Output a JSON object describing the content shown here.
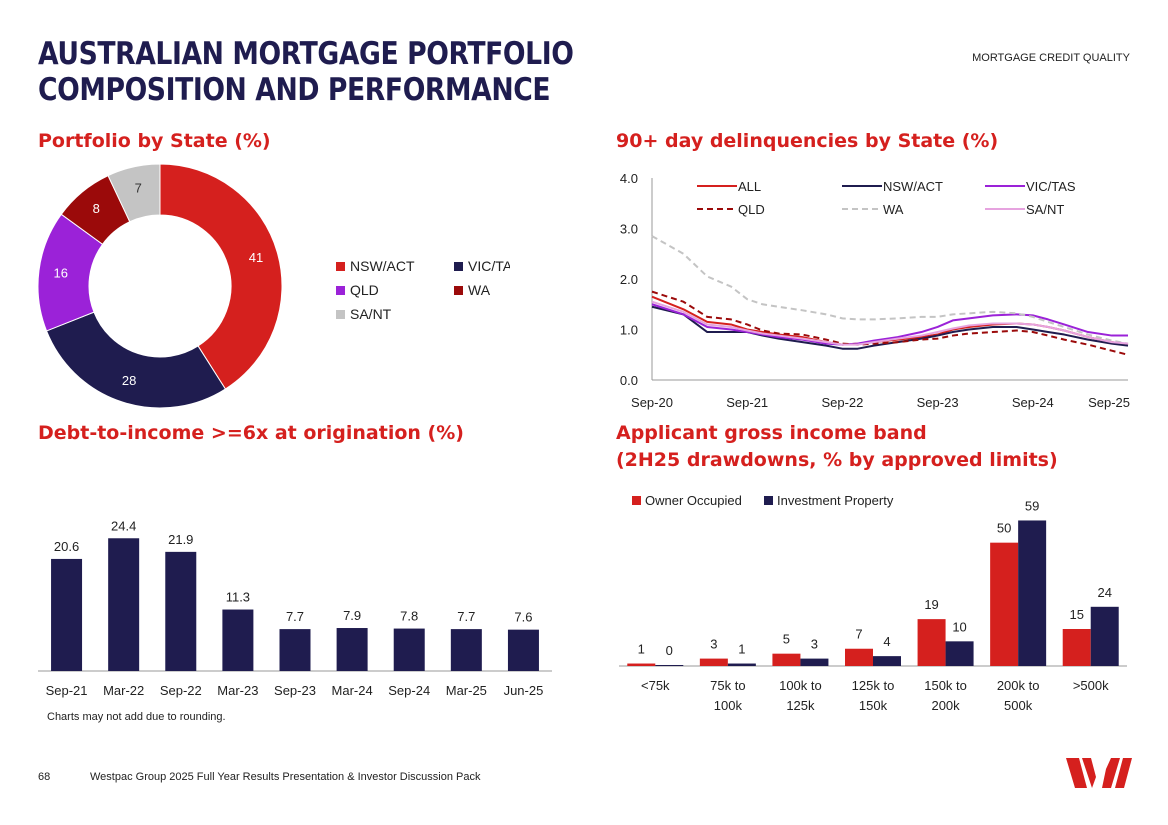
{
  "header": {
    "title": "AUSTRALIAN MORTGAGE PORTFOLIO COMPOSITION AND PERFORMANCE",
    "section": "MORTGAGE CREDIT QUALITY"
  },
  "colors": {
    "navy": "#1f1c4f",
    "red": "#d5201e",
    "purple": "#9b22d8",
    "darkred": "#9b0a0a",
    "grey": "#c4c4c4",
    "pink": "#e6a3df",
    "brand_title": "#1f1c4f"
  },
  "chart_data": [
    {
      "id": "portfolio-by-state",
      "type": "pie",
      "title": "Portfolio by State (%)",
      "labels": [
        "NSW/ACT",
        "VIC/TAS",
        "QLD",
        "WA",
        "SA/NT"
      ],
      "values": [
        41,
        28,
        16,
        8,
        7
      ],
      "colors": [
        "#d5201e",
        "#1f1c4f",
        "#9b22d8",
        "#9b0a0a",
        "#c4c4c4"
      ],
      "donut": true
    },
    {
      "id": "delinquencies-by-state",
      "type": "line",
      "title": "90+ day delinquencies by State (%)",
      "x": [
        2020.67,
        2021.0,
        2021.25,
        2021.5,
        2021.67,
        2021.83,
        2022.0,
        2022.25,
        2022.5,
        2022.67,
        2022.83,
        2023.0,
        2023.25,
        2023.5,
        2023.67,
        2023.83,
        2024.0,
        2024.25,
        2024.5,
        2024.67,
        2024.83,
        2025.0,
        2025.25,
        2025.5,
        2025.67
      ],
      "x_ticks": [
        2020.67,
        2021.67,
        2022.67,
        2023.67,
        2024.67,
        2025.67
      ],
      "x_tick_labels": [
        "Sep-20",
        "Sep-21",
        "Sep-22",
        "Sep-23",
        "Sep-24",
        "Sep-25"
      ],
      "y_ticks": [
        0,
        1,
        2,
        3,
        4
      ],
      "y_tick_labels": [
        "0.0",
        "1.0",
        "2.0",
        "3.0",
        "4.0"
      ],
      "ylim": [
        0,
        4
      ],
      "xlim": [
        2020.67,
        2025.67
      ],
      "series": [
        {
          "name": "ALL",
          "color": "#d5201e",
          "dash": "",
          "values": [
            1.65,
            1.4,
            1.15,
            1.1,
            1.0,
            0.95,
            0.9,
            0.85,
            0.75,
            0.7,
            0.72,
            0.75,
            0.8,
            0.85,
            0.9,
            1.0,
            1.05,
            1.1,
            1.12,
            1.1,
            1.05,
            0.98,
            0.85,
            0.75,
            0.7
          ]
        },
        {
          "name": "NSW/ACT",
          "color": "#1f1c4f",
          "dash": "",
          "values": [
            1.45,
            1.3,
            0.95,
            0.95,
            0.95,
            0.88,
            0.82,
            0.75,
            0.68,
            0.62,
            0.62,
            0.68,
            0.75,
            0.82,
            0.88,
            0.95,
            1.0,
            1.05,
            1.05,
            1.0,
            0.95,
            0.9,
            0.8,
            0.72,
            0.68
          ]
        },
        {
          "name": "VIC/TAS",
          "color": "#9b22d8",
          "dash": "",
          "values": [
            1.5,
            1.3,
            1.05,
            1.0,
            0.95,
            0.9,
            0.85,
            0.8,
            0.72,
            0.7,
            0.72,
            0.78,
            0.85,
            0.95,
            1.05,
            1.18,
            1.22,
            1.28,
            1.3,
            1.28,
            1.2,
            1.1,
            0.95,
            0.88,
            0.88
          ]
        },
        {
          "name": "QLD",
          "color": "#9b0a0a",
          "dash": "6,4",
          "values": [
            1.75,
            1.55,
            1.25,
            1.2,
            1.1,
            0.98,
            0.92,
            0.9,
            0.8,
            0.72,
            0.7,
            0.72,
            0.75,
            0.8,
            0.82,
            0.88,
            0.92,
            0.95,
            0.98,
            0.95,
            0.88,
            0.8,
            0.7,
            0.58,
            0.5
          ]
        },
        {
          "name": "WA",
          "color": "#c4c4c4",
          "dash": "6,4",
          "values": [
            2.85,
            2.5,
            2.05,
            1.85,
            1.6,
            1.5,
            1.45,
            1.38,
            1.3,
            1.22,
            1.2,
            1.2,
            1.22,
            1.25,
            1.25,
            1.3,
            1.32,
            1.35,
            1.32,
            1.25,
            1.15,
            1.05,
            0.9,
            0.78,
            0.72
          ]
        },
        {
          "name": "SA/NT",
          "color": "#e6a3df",
          "dash": "",
          "values": [
            1.55,
            1.35,
            1.1,
            1.05,
            0.98,
            0.92,
            0.88,
            0.82,
            0.75,
            0.7,
            0.7,
            0.75,
            0.82,
            0.88,
            0.95,
            1.02,
            1.08,
            1.12,
            1.12,
            1.1,
            1.05,
            0.98,
            0.85,
            0.75,
            0.72
          ]
        }
      ]
    },
    {
      "id": "dti-6x",
      "type": "bar",
      "title": "Debt-to-income >=6x at origination (%)",
      "categories": [
        "Sep-21",
        "Mar-22",
        "Sep-22",
        "Mar-23",
        "Sep-23",
        "Mar-24",
        "Sep-24",
        "Mar-25",
        "Jun-25"
      ],
      "values": [
        20.6,
        24.4,
        21.9,
        11.3,
        7.7,
        7.9,
        7.8,
        7.7,
        7.6
      ],
      "value_labels": [
        "20.6",
        "24.4",
        "21.9",
        "11.3",
        "7.7",
        "7.9",
        "7.8",
        "7.7",
        "7.6"
      ],
      "ylim": [
        0,
        25
      ],
      "color": "#1f1c4f"
    },
    {
      "id": "gross-income-band",
      "type": "bar",
      "title_line1": "Applicant gross income band",
      "title_line2": "(2H25 drawdowns, % by approved limits)",
      "categories": [
        [
          "<75k"
        ],
        [
          "75k to",
          "100k"
        ],
        [
          "100k to",
          "125k"
        ],
        [
          "125k to",
          "150k"
        ],
        [
          "150k to",
          "200k"
        ],
        [
          "200k to",
          "500k"
        ],
        [
          ">500k"
        ]
      ],
      "series": [
        {
          "name": "Owner Occupied",
          "color": "#d5201e",
          "values": [
            1,
            3,
            5,
            7,
            19,
            50,
            15
          ]
        },
        {
          "name": "Investment Property",
          "color": "#1f1c4f",
          "values": [
            0,
            1,
            3,
            4,
            10,
            59,
            24
          ]
        }
      ],
      "ylim": [
        0,
        60
      ]
    }
  ],
  "footnote": "Charts may not add due to rounding.",
  "footer": {
    "page_number": "68",
    "text": "Westpac Group 2025 Full Year Results Presentation & Investor Discussion Pack"
  }
}
